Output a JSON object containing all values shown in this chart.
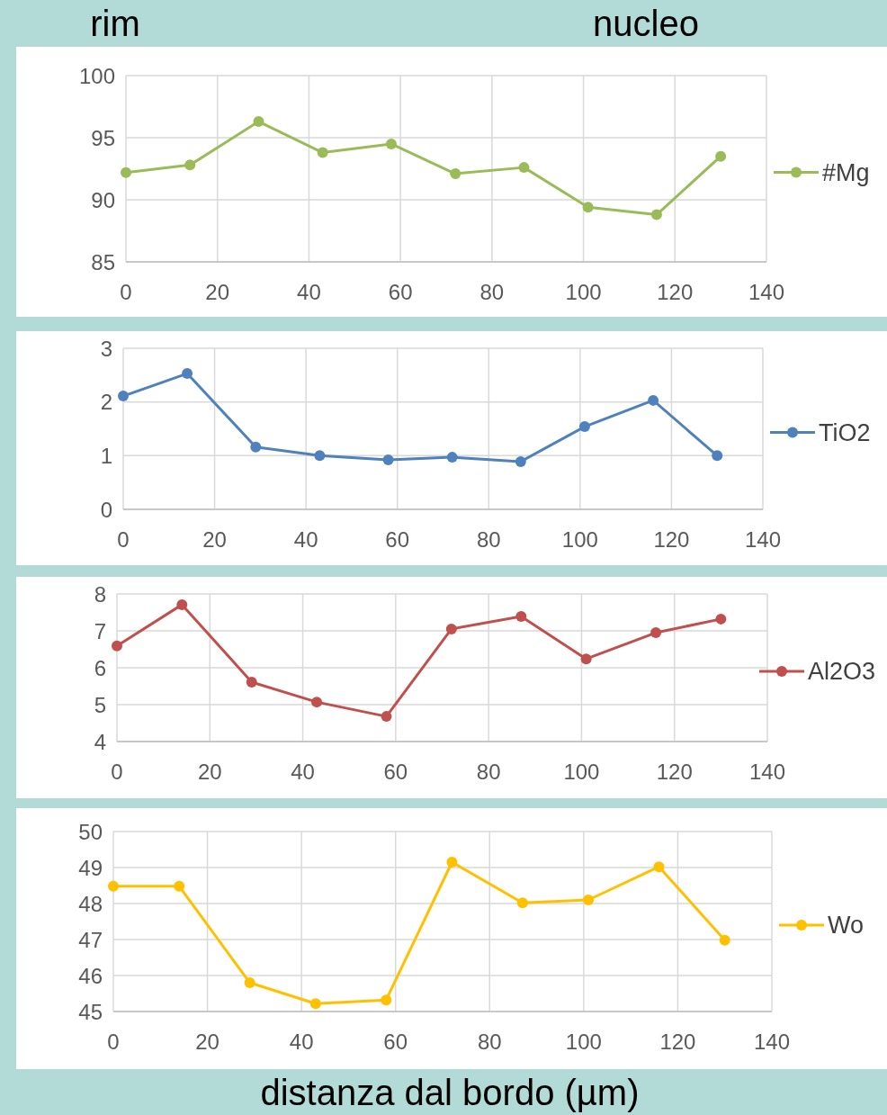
{
  "chart_data": [
    {
      "type": "line",
      "annotations": [
        "rim",
        "nucleo"
      ],
      "x": [
        0,
        14,
        29,
        43,
        58,
        72,
        87,
        101,
        116,
        130
      ],
      "xlim": [
        0,
        140
      ],
      "xticks": [
        0,
        20,
        40,
        60,
        80,
        100,
        120,
        140
      ],
      "ylim": [
        85,
        100
      ],
      "yticks": [
        85,
        90,
        95,
        100
      ],
      "grid": true,
      "marker": "circle",
      "legend": "right",
      "series": [
        {
          "name": "#Mg",
          "color": "#9bbb59",
          "values": [
            92.2,
            92.8,
            96.3,
            93.8,
            94.5,
            92.1,
            92.6,
            89.4,
            88.8,
            93.5
          ]
        }
      ]
    },
    {
      "type": "line",
      "x": [
        0,
        14,
        29,
        43,
        58,
        72,
        87,
        101,
        116,
        130
      ],
      "xlim": [
        0,
        140
      ],
      "xticks": [
        0,
        20,
        40,
        60,
        80,
        100,
        120,
        140
      ],
      "ylim": [
        0,
        3
      ],
      "yticks": [
        0,
        1,
        2,
        3
      ],
      "grid": true,
      "marker": "circle",
      "legend": "right",
      "series": [
        {
          "name": "TiO2",
          "color": "#4f81bd",
          "values": [
            2.11,
            2.53,
            1.16,
            1.0,
            0.92,
            0.97,
            0.89,
            1.54,
            2.03,
            1.0
          ]
        }
      ]
    },
    {
      "type": "line",
      "x": [
        0,
        14,
        29,
        43,
        58,
        72,
        87,
        101,
        116,
        130
      ],
      "xlim": [
        0,
        140
      ],
      "xticks": [
        0,
        20,
        40,
        60,
        80,
        100,
        120,
        140
      ],
      "ylim": [
        4,
        8
      ],
      "yticks": [
        4,
        5,
        6,
        7,
        8
      ],
      "grid": true,
      "marker": "circle",
      "legend": "right",
      "series": [
        {
          "name": "Al2O3",
          "color": "#c0504d",
          "values": [
            6.59,
            7.71,
            5.61,
            5.07,
            4.68,
            7.05,
            7.39,
            6.24,
            6.95,
            7.32
          ]
        }
      ]
    },
    {
      "type": "line",
      "x": [
        0,
        14,
        29,
        43,
        58,
        72,
        87,
        101,
        116,
        130
      ],
      "xlim": [
        0,
        140
      ],
      "xticks": [
        0,
        20,
        40,
        60,
        80,
        100,
        120,
        140
      ],
      "ylim": [
        45,
        50
      ],
      "yticks": [
        45,
        46,
        47,
        48,
        49,
        50
      ],
      "grid": true,
      "marker": "circle",
      "legend": "right",
      "xlabel": "distanza dal bordo (µm)",
      "series": [
        {
          "name": "Wo",
          "color": "#ffc000",
          "values": [
            48.48,
            48.48,
            45.8,
            45.22,
            45.32,
            49.15,
            48.02,
            48.1,
            49.02,
            46.98
          ]
        }
      ]
    }
  ]
}
